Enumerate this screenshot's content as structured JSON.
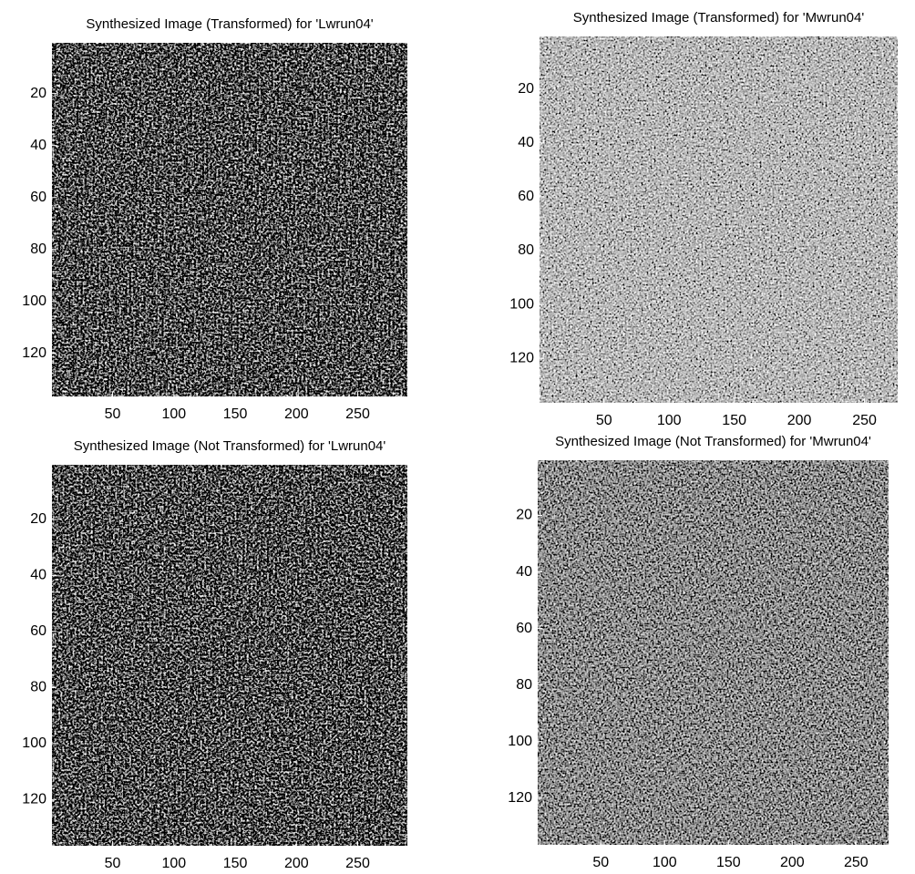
{
  "chart_data": [
    {
      "type": "image",
      "title": "Synthesized Image (Transformed) for 'Lwrun04'",
      "xlim": [
        0.5,
        290.5
      ],
      "ylim": [
        136.5,
        0.5
      ],
      "xticks": [
        50,
        100,
        150,
        200,
        250
      ],
      "yticks": [
        20,
        40,
        60,
        80,
        100,
        120
      ],
      "colormap": "gray"
    },
    {
      "type": "image",
      "title": "Synthesized Image (Transformed) for 'Mwrun04'",
      "xlim": [
        0.5,
        275.5
      ],
      "ylim": [
        136.5,
        0.5
      ],
      "xticks": [
        50,
        100,
        150,
        200,
        250
      ],
      "yticks": [
        20,
        40,
        60,
        80,
        100,
        120
      ],
      "colormap": "gray"
    },
    {
      "type": "image",
      "title": "Synthesized Image (Not Transformed) for 'Lwrun04'",
      "xlim": [
        0.5,
        290.5
      ],
      "ylim": [
        136.5,
        0.5
      ],
      "xticks": [
        50,
        100,
        150,
        200,
        250
      ],
      "yticks": [
        20,
        40,
        60,
        80,
        100,
        120
      ],
      "colormap": "gray"
    },
    {
      "type": "image",
      "title": "Synthesized Image (Not Transformed) for 'Mwrun04'",
      "xlim": [
        0.5,
        275.5
      ],
      "ylim": [
        136.5,
        0.5
      ],
      "xticks": [
        50,
        100,
        150,
        200,
        250
      ],
      "yticks": [
        20,
        40,
        60,
        80,
        100,
        120
      ],
      "colormap": "gray"
    }
  ]
}
